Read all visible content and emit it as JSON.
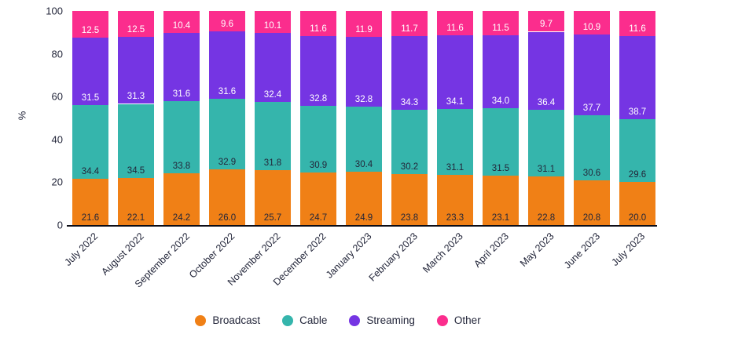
{
  "chart_data": {
    "type": "bar",
    "stacked": true,
    "title": "",
    "xlabel": "",
    "ylabel": "%",
    "ylim": [
      0,
      100
    ],
    "yticks": [
      0,
      20,
      40,
      60,
      80,
      100
    ],
    "grid": false,
    "legend_position": "bottom",
    "categories": [
      "July 2022",
      "August 2022",
      "September 2022",
      "October 2022",
      "November 2022",
      "December 2022",
      "January 2023",
      "February 2023",
      "March 2023",
      "April 2023",
      "May 2023",
      "June 2023",
      "July 2023"
    ],
    "series": [
      {
        "name": "Broadcast",
        "color": "#F08016",
        "label_color": "#23263a",
        "values": [
          21.6,
          22.1,
          24.2,
          26.0,
          25.7,
          24.7,
          24.9,
          23.8,
          23.3,
          23.1,
          22.8,
          20.8,
          20.0
        ]
      },
      {
        "name": "Cable",
        "color": "#35B5AC",
        "label_color": "#23263a",
        "values": [
          34.4,
          34.5,
          33.8,
          32.9,
          31.8,
          30.9,
          30.4,
          30.2,
          31.1,
          31.5,
          31.1,
          30.6,
          29.6
        ]
      },
      {
        "name": "Streaming",
        "color": "#7535E3",
        "label_color": "#ffffff",
        "values": [
          31.5,
          31.3,
          31.6,
          31.6,
          32.4,
          32.8,
          32.8,
          34.3,
          34.1,
          34.0,
          36.4,
          37.7,
          38.7
        ]
      },
      {
        "name": "Other",
        "color": "#FB2D8D",
        "label_color": "#ffffff",
        "values": [
          12.5,
          12.5,
          10.4,
          9.6,
          10.1,
          11.6,
          11.9,
          11.7,
          11.6,
          11.5,
          9.7,
          10.9,
          11.6
        ]
      }
    ],
    "legend": [
      "Broadcast",
      "Cable",
      "Streaming",
      "Other"
    ]
  }
}
